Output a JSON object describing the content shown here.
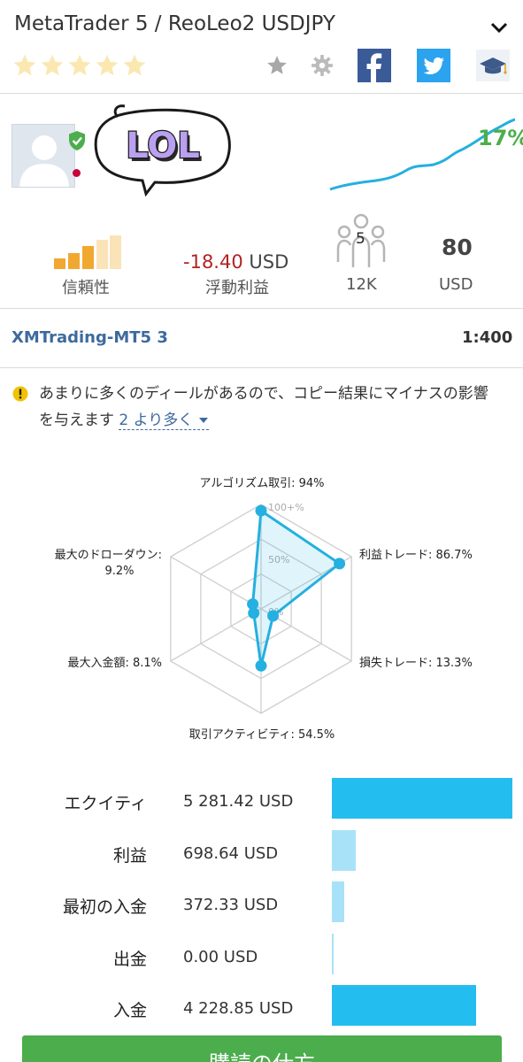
{
  "header": {
    "title": "MetaTrader 5 / ReoLeo2 USDJPY",
    "rating": 5,
    "icons": [
      "star-icon",
      "gear-icon",
      "facebook-icon",
      "twitter-icon",
      "graduation-cap-icon"
    ]
  },
  "profile": {
    "sticker_text": "LOL",
    "gain": "17%"
  },
  "stats": {
    "reliability_label": "信頼性",
    "floating_value": "-18.40",
    "floating_currency": "USD",
    "floating_label": "浮動利益",
    "subscribers_count": "5",
    "subscribers_label": "12K",
    "price_value": "80",
    "price_label": "USD"
  },
  "server": {
    "name": "XMTrading-MT5 3",
    "leverage": "1:400"
  },
  "warning": {
    "line1": "あまりに多くのディールがあるので、コピー結果にマイナスの影響",
    "line2": "を与えます",
    "more": "2 より多く"
  },
  "chart_data": {
    "type": "radar",
    "axis_ticks": [
      "100+%",
      "50%",
      "0%"
    ],
    "axes": [
      {
        "label": "アルゴリズム取引: 94%",
        "value": 94
      },
      {
        "label": "利益トレード: 86.7%",
        "value": 86.7
      },
      {
        "label": "損失トレード: 13.3%",
        "value": 13.3
      },
      {
        "label": "取引アクティビティ: 54.5%",
        "value": 54.5
      },
      {
        "label": "最大入金額: 8.1%",
        "value": 8.1
      },
      {
        "label_line1": "最大のドローダウン:",
        "label_line2": "9.2%",
        "value": 9.2
      }
    ],
    "range": [
      0,
      100
    ]
  },
  "financials": [
    {
      "label": "エクイティ",
      "value": "5 281.42 USD",
      "fraction": 1.0,
      "color": "#24bdf0"
    },
    {
      "label": "利益",
      "value": "698.64 USD",
      "fraction": 0.132,
      "color": "#a8e2f8"
    },
    {
      "label": "最初の入金",
      "value": "372.33 USD",
      "fraction": 0.07,
      "color": "#a8e2f8"
    },
    {
      "label": "出金",
      "value": "0.00 USD",
      "fraction": 0.0,
      "color": "#a8e2f8"
    },
    {
      "label": "入金",
      "value": "4 228.85 USD",
      "fraction": 0.8,
      "color": "#24bdf0"
    }
  ],
  "subscribe": {
    "label": "購読の仕方"
  }
}
